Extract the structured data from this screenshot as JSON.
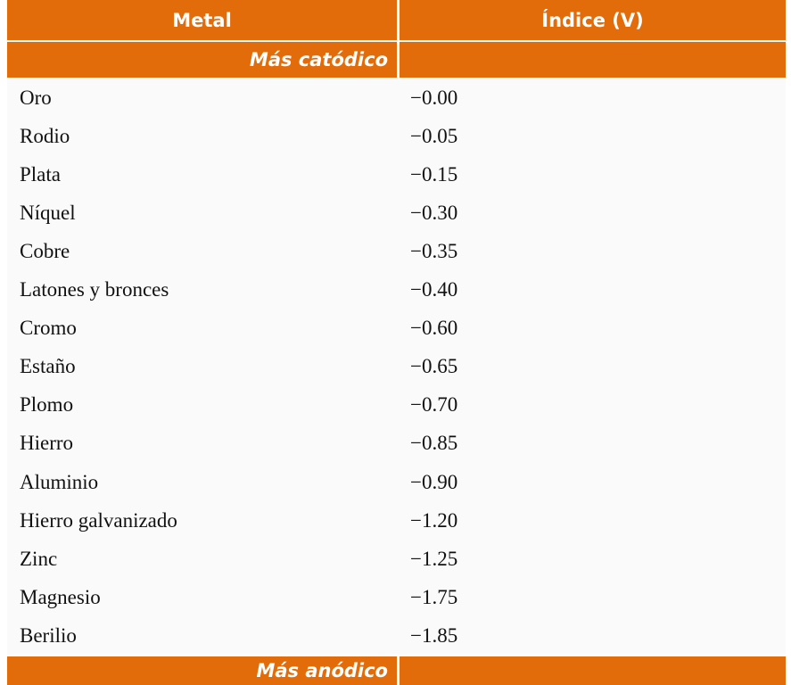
{
  "table": {
    "header": [
      "Metal",
      "Índice (V)"
    ],
    "top_label": "Más catódico",
    "rows": [
      [
        "Oro",
        "−0.00"
      ],
      [
        "Rodio",
        "−0.05"
      ],
      [
        "Plata",
        "−0.15"
      ],
      [
        "Níquel",
        "−0.30"
      ],
      [
        "Cobre",
        "−0.35"
      ],
      [
        "Latones y bronces",
        "−0.40"
      ],
      [
        "Cromo",
        "−0.60"
      ],
      [
        "Estaño",
        "−0.65"
      ],
      [
        "Plomo",
        "−0.70"
      ],
      [
        "Hierro",
        "−0.85"
      ],
      [
        "Aluminio",
        "−0.90"
      ],
      [
        "Hierro galvanizado",
        "−1.20"
      ],
      [
        "Zinc",
        "−1.25"
      ],
      [
        "Magnesio",
        "−1.75"
      ],
      [
        "Berilio",
        "−1.85"
      ]
    ],
    "bottom_label": "Más anódico"
  }
}
